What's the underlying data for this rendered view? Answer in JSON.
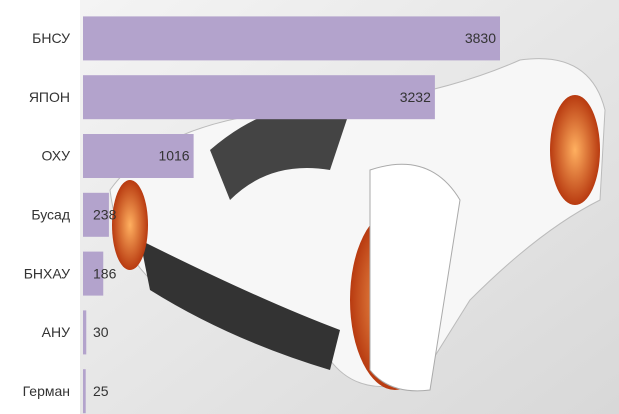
{
  "chart_data": {
    "type": "bar",
    "orientation": "horizontal",
    "categories": [
      "БНСУ",
      "ЯПОН",
      "ОХУ",
      "Бусад",
      "БНХАУ",
      "АНУ",
      "Герман"
    ],
    "values": [
      3830,
      3232,
      1016,
      238,
      186,
      30,
      25
    ],
    "color": "#b3a3cc"
  }
}
